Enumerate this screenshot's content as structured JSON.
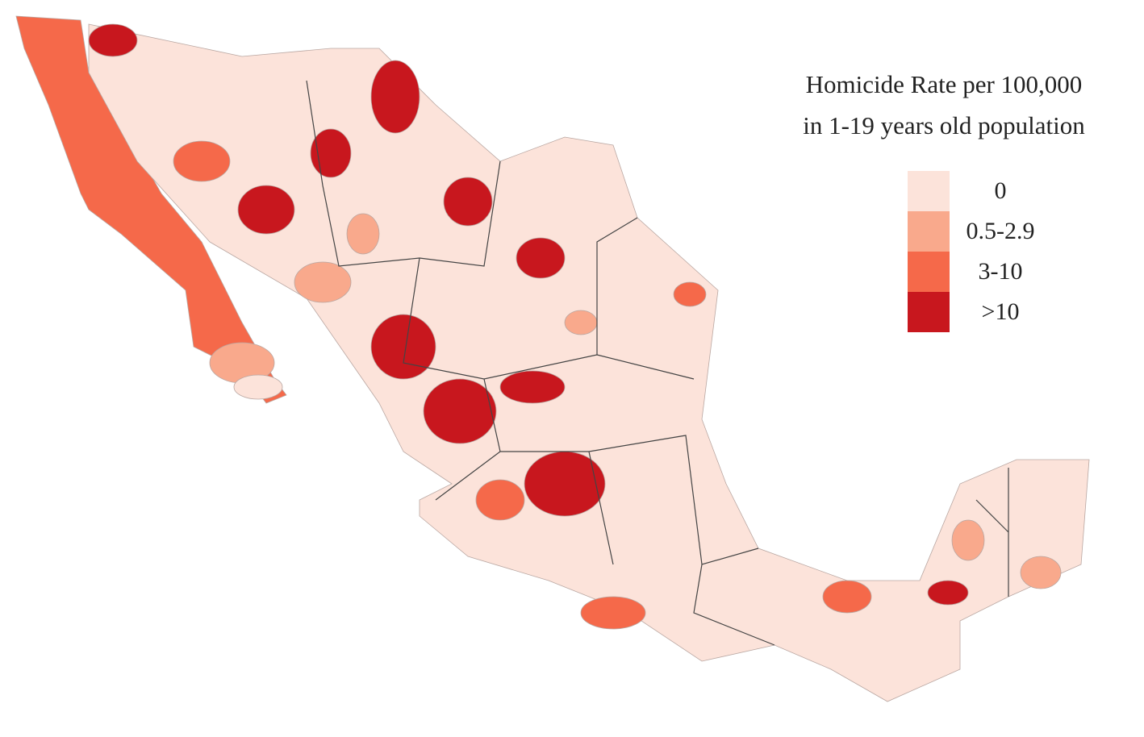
{
  "legend": {
    "title": [
      "Homicide Rate per 100,000",
      "in  1-19 years old population"
    ],
    "items": [
      {
        "label": "0",
        "color": "#fce3da"
      },
      {
        "label": "0.5-2.9",
        "color": "#f9a98c"
      },
      {
        "label": "3-10",
        "color": "#f5694a"
      },
      {
        "label": ">10",
        "color": "#c8171e"
      }
    ]
  }
}
